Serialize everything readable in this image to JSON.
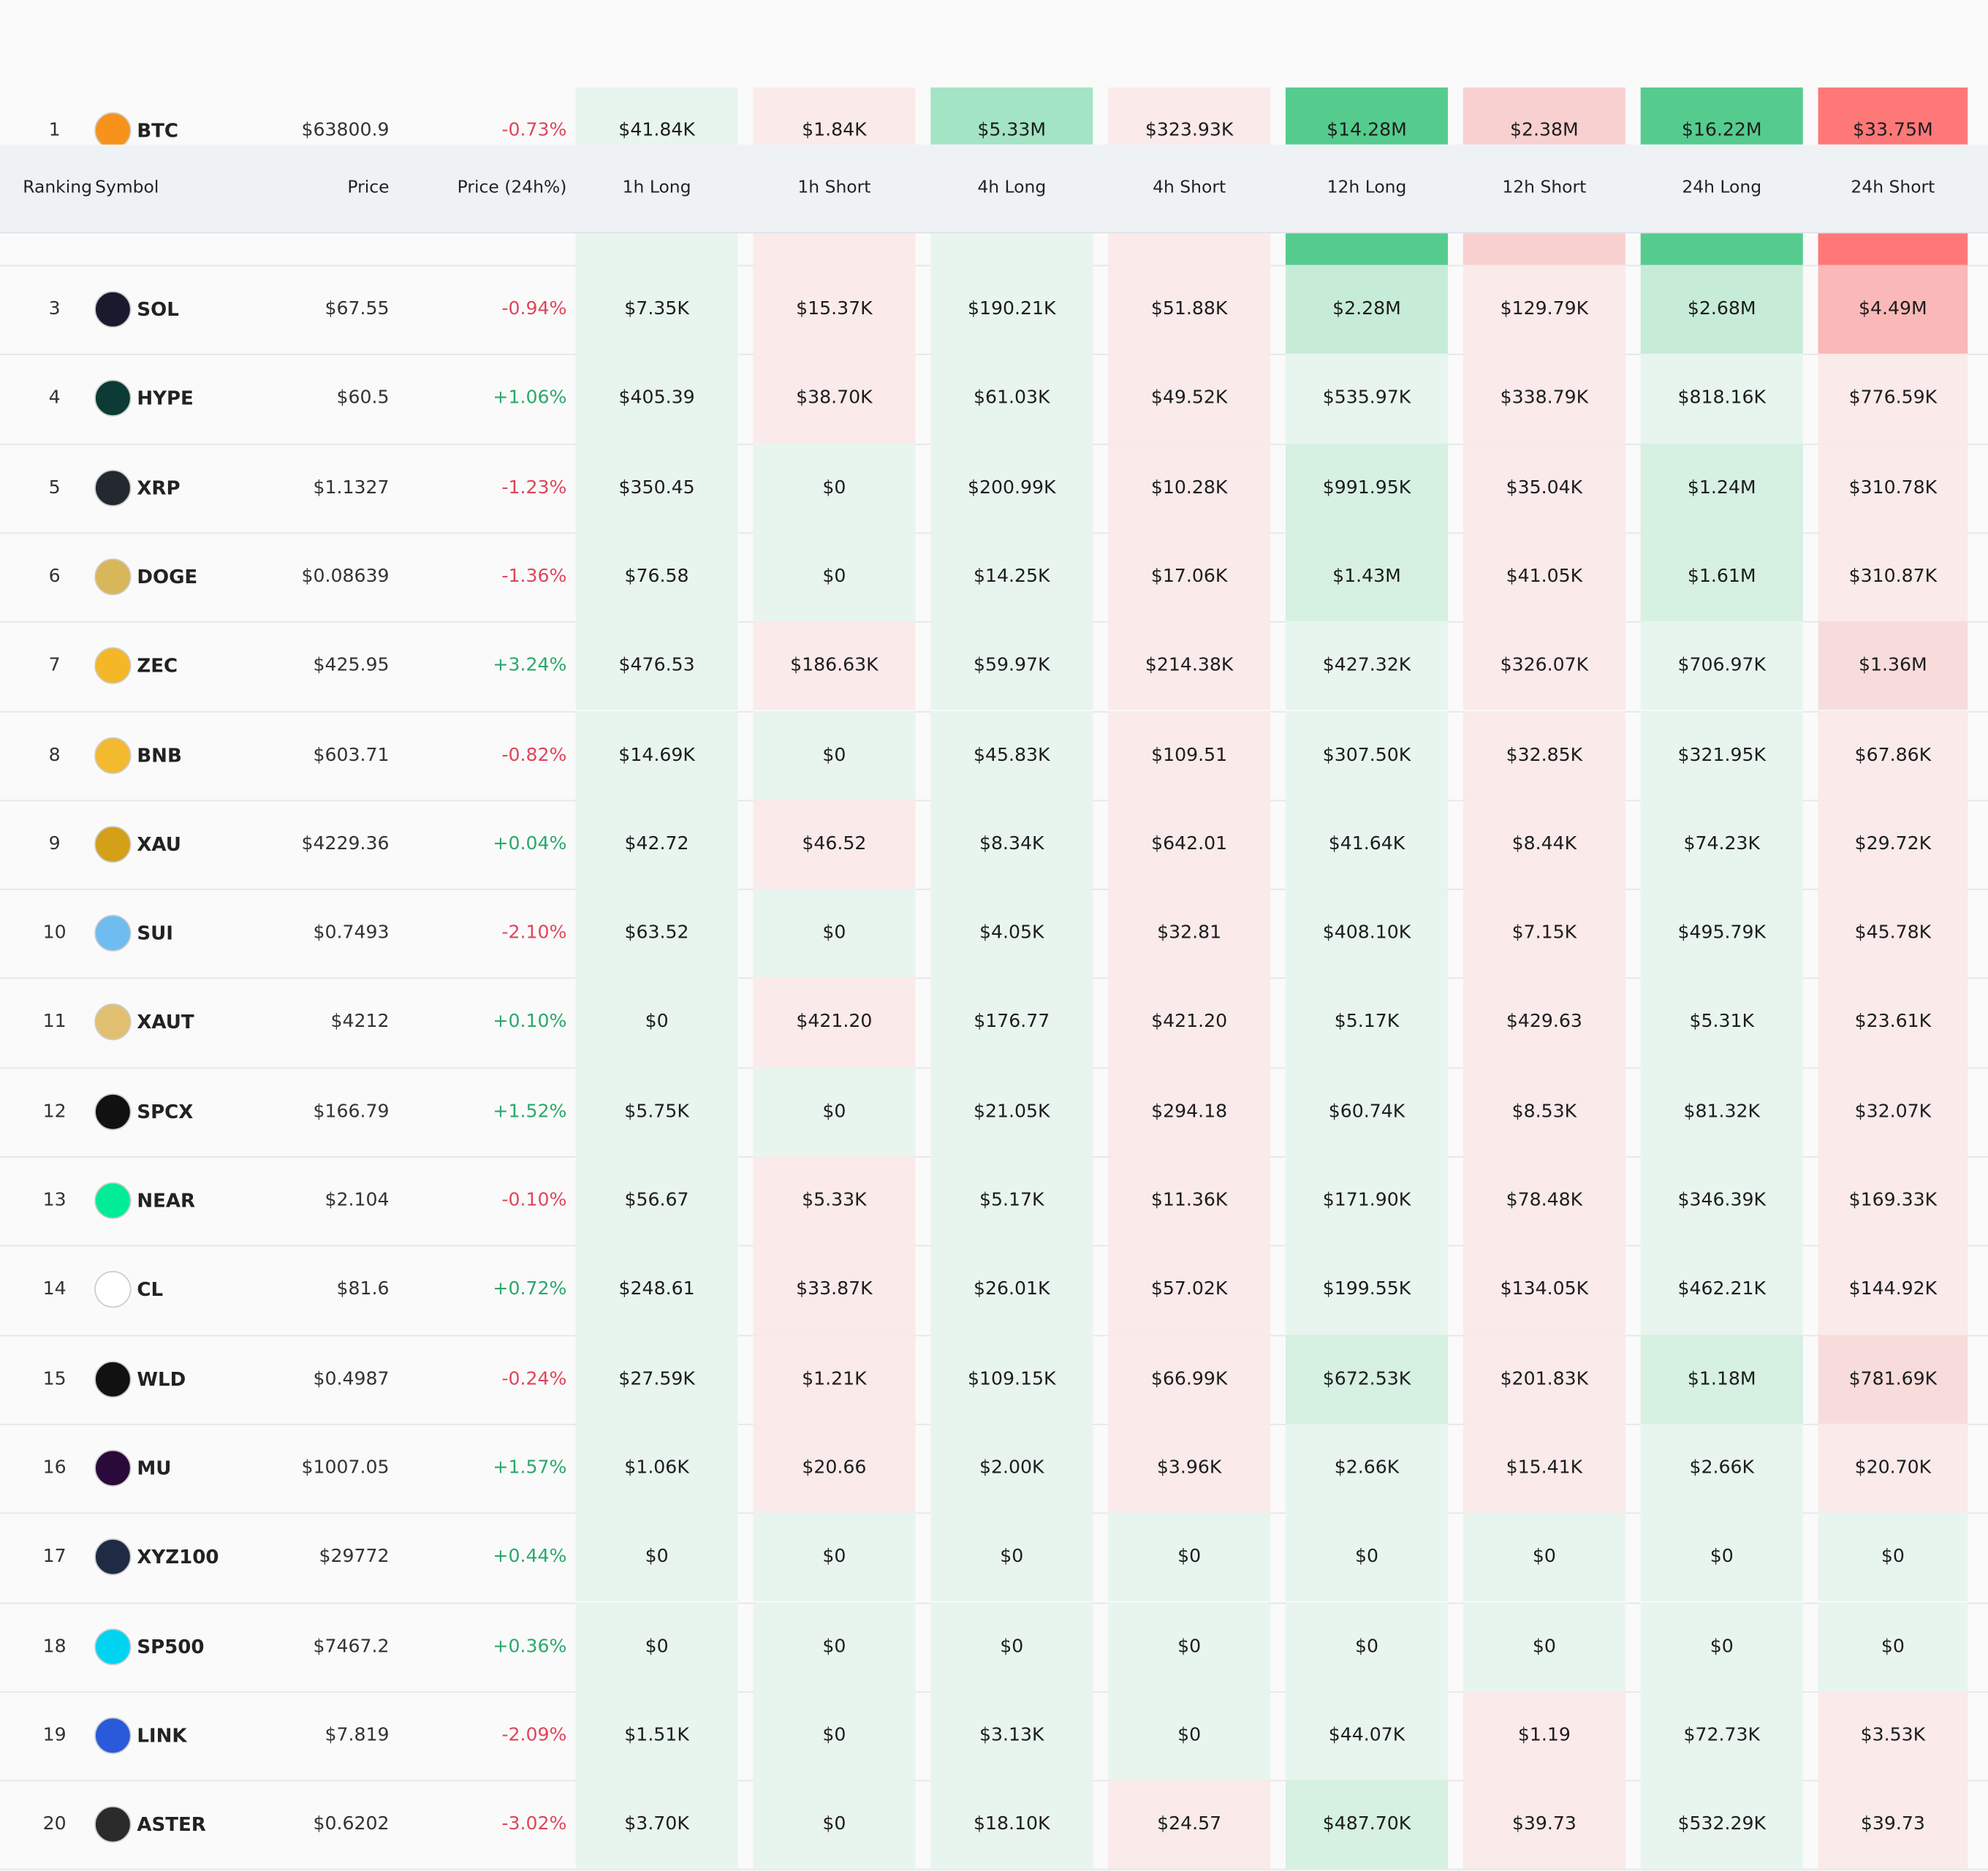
{
  "header": {
    "columns": [
      "Ranking",
      "Symbol",
      "Price",
      "Price (24h%)",
      "1h Long",
      "1h Short",
      "4h Long",
      "4h Short",
      "12h Long",
      "12h Short",
      "24h Long",
      "24h Short"
    ]
  },
  "table": {
    "rows": [
      [
        "1",
        "BTC",
        "$63800.9",
        "-0.73%",
        "$41.84K",
        "$1.84K",
        "$5.33M",
        "$323.93K",
        "$14.28M",
        "$2.38M",
        "$16.22M",
        "$33.75M"
      ],
      [
        "3",
        "SOL",
        "$67.55",
        "-0.94%",
        "$7.35K",
        "$15.37K",
        "$190.21K",
        "$51.88K",
        "$2.28M",
        "$129.79K",
        "$2.68M",
        "$4.49M"
      ],
      [
        "4",
        "HYPE",
        "$60.5",
        "+1.06%",
        "$405.39",
        "$38.70K",
        "$61.03K",
        "$49.52K",
        "$535.97K",
        "$338.79K",
        "$818.16K",
        "$776.59K"
      ],
      [
        "5",
        "XRP",
        "$1.1327",
        "-1.23%",
        "$350.45",
        "$0",
        "$200.99K",
        "$10.28K",
        "$991.95K",
        "$35.04K",
        "$1.24M",
        "$310.78K"
      ],
      [
        "6",
        "DOGE",
        "$0.08639",
        "-1.36%",
        "$76.58",
        "$0",
        "$14.25K",
        "$17.06K",
        "$1.43M",
        "$41.05K",
        "$1.61M",
        "$310.87K"
      ],
      [
        "7",
        "ZEC",
        "$425.95",
        "+3.24%",
        "$476.53",
        "$186.63K",
        "$59.97K",
        "$214.38K",
        "$427.32K",
        "$326.07K",
        "$706.97K",
        "$1.36M"
      ],
      [
        "8",
        "BNB",
        "$603.71",
        "-0.82%",
        "$14.69K",
        "$0",
        "$45.83K",
        "$109.51",
        "$307.50K",
        "$32.85K",
        "$321.95K",
        "$67.86K"
      ],
      [
        "9",
        "XAU",
        "$4229.36",
        "+0.04%",
        "$42.72",
        "$46.52",
        "$8.34K",
        "$642.01",
        "$41.64K",
        "$8.44K",
        "$74.23K",
        "$29.72K"
      ],
      [
        "10",
        "SUI",
        "$0.7493",
        "-2.10%",
        "$63.52",
        "$0",
        "$4.05K",
        "$32.81",
        "$408.10K",
        "$7.15K",
        "$495.79K",
        "$45.78K"
      ],
      [
        "11",
        "XAUT",
        "$4212",
        "+0.10%",
        "$0",
        "$421.20",
        "$176.77",
        "$421.20",
        "$5.17K",
        "$429.63",
        "$5.31K",
        "$23.61K"
      ],
      [
        "12",
        "SPCX",
        "$166.79",
        "+1.52%",
        "$5.75K",
        "$0",
        "$21.05K",
        "$294.18",
        "$60.74K",
        "$8.53K",
        "$81.32K",
        "$32.07K"
      ],
      [
        "13",
        "NEAR",
        "$2.104",
        "-0.10%",
        "$56.67",
        "$5.33K",
        "$5.17K",
        "$11.36K",
        "$171.90K",
        "$78.48K",
        "$346.39K",
        "$169.33K"
      ],
      [
        "14",
        "CL",
        "$81.6",
        "+0.72%",
        "$248.61",
        "$33.87K",
        "$26.01K",
        "$57.02K",
        "$199.55K",
        "$134.05K",
        "$462.21K",
        "$144.92K"
      ],
      [
        "15",
        "WLD",
        "$0.4987",
        "-0.24%",
        "$27.59K",
        "$1.21K",
        "$109.15K",
        "$66.99K",
        "$672.53K",
        "$201.83K",
        "$1.18M",
        "$781.69K"
      ],
      [
        "16",
        "MU",
        "$1007.05",
        "+1.57%",
        "$1.06K",
        "$20.66",
        "$2.00K",
        "$3.96K",
        "$2.66K",
        "$15.41K",
        "$2.66K",
        "$20.70K"
      ],
      [
        "17",
        "XYZ100",
        "$29772",
        "+0.44%",
        "$0",
        "$0",
        "$0",
        "$0",
        "$0",
        "$0",
        "$0",
        "$0"
      ],
      [
        "18",
        "SP500",
        "$7467.2",
        "+0.36%",
        "$0",
        "$0",
        "$0",
        "$0",
        "$0",
        "$0",
        "$0",
        "$0"
      ],
      [
        "19",
        "LINK",
        "$7.819",
        "-2.09%",
        "$1.51K",
        "$0",
        "$3.13K",
        "$0",
        "$44.07K",
        "$1.19",
        "$72.73K",
        "$3.53K"
      ],
      [
        "20",
        "ASTER",
        "$0.6202",
        "-3.02%",
        "$3.70K",
        "$0",
        "$18.10K",
        "$24.57",
        "$487.70K",
        "$39.73",
        "$532.29K",
        "$39.73"
      ]
    ]
  }
}
